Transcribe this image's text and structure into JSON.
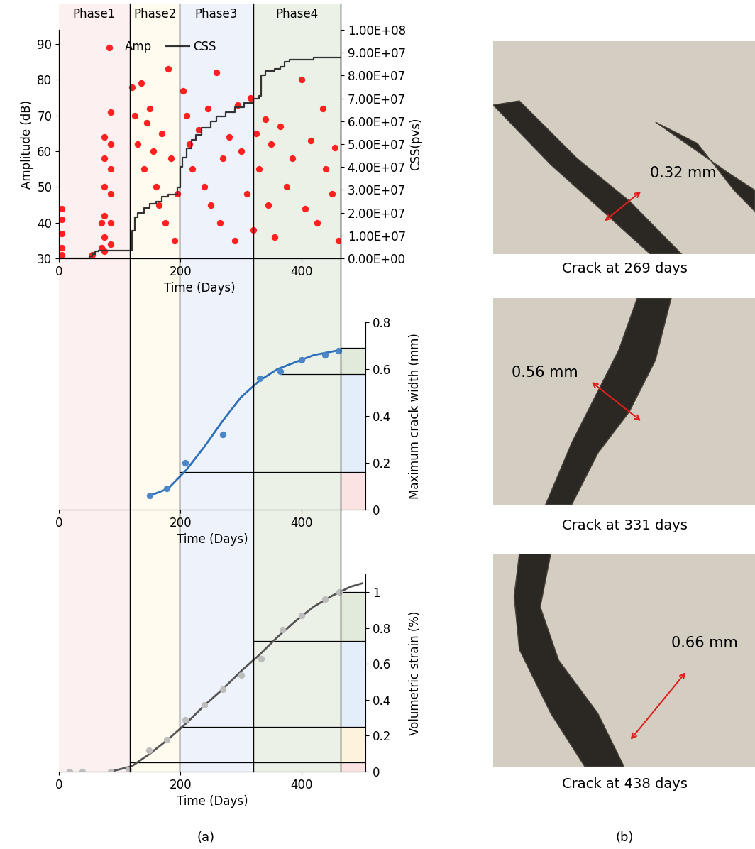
{
  "phases": [
    {
      "name": "Phase1",
      "from": 0,
      "to": 117,
      "color": "#fdf0f0"
    },
    {
      "name": "Phase2",
      "from": 117,
      "to": 199,
      "color": "#fffbee"
    },
    {
      "name": "Phase3",
      "from": 199,
      "to": 320,
      "color": "#eef3fb"
    },
    {
      "name": "Phase4",
      "from": 320,
      "to": 464,
      "color": "#ebf1e6"
    }
  ],
  "chart_data": [
    {
      "type": "scatter",
      "xlabel": "Time (Days)",
      "ylabel": "Amplitude (dB)",
      "y2label": "CSS(pvs)",
      "xlim": [
        0,
        464
      ],
      "xticks": [
        0,
        200,
        400
      ],
      "ylim": [
        30,
        94
      ],
      "yticks": [
        30,
        40,
        50,
        60,
        70,
        80,
        90
      ],
      "y2lim": [
        0,
        100000000
      ],
      "y2ticks": [
        {
          "value": 0,
          "label": "0.00E+00"
        },
        {
          "value": 10000000,
          "label": "1.00E+07"
        },
        {
          "value": 20000000,
          "label": "2.00E+07"
        },
        {
          "value": 30000000,
          "label": "3.00E+07"
        },
        {
          "value": 40000000,
          "label": "4.00E+07"
        },
        {
          "value": 50000000,
          "label": "5.00E+07"
        },
        {
          "value": 60000000,
          "label": "6.00E+07"
        },
        {
          "value": 70000000,
          "label": "7.00E+07"
        },
        {
          "value": 80000000,
          "label": "8.00E+07"
        },
        {
          "value": 90000000,
          "label": "9.00E+07"
        },
        {
          "value": 100000000,
          "label": "1.00E+08"
        }
      ],
      "legend": "upper left",
      "series": [
        {
          "name": "Amp",
          "type": "scatter",
          "color": "#ff2020",
          "marker": "o",
          "x": [
            5,
            5,
            5,
            5,
            5,
            55,
            70,
            70,
            75,
            75,
            75,
            75,
            75,
            75,
            85,
            85,
            85,
            85,
            85,
            85,
            120,
            125,
            130,
            135,
            140,
            145,
            150,
            155,
            160,
            165,
            170,
            175,
            180,
            185,
            190,
            195,
            205,
            210,
            215,
            220,
            230,
            240,
            245,
            250,
            260,
            265,
            270,
            280,
            290,
            295,
            300,
            310,
            315,
            320,
            325,
            330,
            340,
            345,
            350,
            355,
            365,
            375,
            385,
            400,
            405,
            415,
            425,
            435,
            440,
            450,
            455,
            460
          ],
          "values": [
            44,
            41,
            37,
            33,
            31,
            31,
            33,
            40,
            64,
            58,
            50,
            42,
            36,
            32,
            71,
            62,
            55,
            48,
            40,
            34,
            78,
            70,
            62,
            79,
            55,
            68,
            72,
            60,
            50,
            45,
            65,
            40,
            83,
            58,
            35,
            48,
            77,
            70,
            62,
            55,
            66,
            50,
            72,
            45,
            82,
            40,
            58,
            64,
            35,
            73,
            60,
            48,
            75,
            38,
            65,
            55,
            69,
            45,
            62,
            36,
            67,
            50,
            58,
            80,
            44,
            63,
            40,
            72,
            55,
            48,
            61,
            35
          ]
        },
        {
          "name": "CSS",
          "type": "line",
          "color": "#333333",
          "line_style": "steps",
          "axis": "y2",
          "x": [
            0,
            45,
            50,
            55,
            60,
            65,
            117,
            120,
            125,
            130,
            140,
            150,
            160,
            170,
            180,
            195,
            200,
            203,
            210,
            218,
            225,
            235,
            250,
            260,
            275,
            290,
            305,
            320,
            330,
            333,
            340,
            355,
            365,
            372,
            380,
            420,
            464
          ],
          "values": [
            0,
            0,
            1000000,
            2000000,
            3000000,
            3500000,
            3500000,
            12000000,
            18000000,
            20000000,
            22000000,
            24000000,
            25000000,
            27000000,
            28000000,
            31000000,
            40000000,
            44000000,
            48000000,
            52000000,
            54000000,
            57000000,
            60000000,
            62000000,
            64000000,
            66000000,
            68000000,
            70000000,
            71000000,
            80000000,
            82000000,
            83000000,
            84000000,
            86000000,
            87000000,
            88000000,
            88000000
          ]
        }
      ]
    },
    {
      "type": "scatter",
      "xlabel": "Time (Days)",
      "ylabel": "Maximum crack width (mm)",
      "xlim": [
        0,
        505
      ],
      "xticks": [
        0,
        200,
        400
      ],
      "ylim": [
        0,
        0.8
      ],
      "yticks": [
        0,
        0.2,
        0.4,
        0.6,
        0.8
      ],
      "phase_levels": [
        {
          "y": 0.16,
          "from": 199
        },
        {
          "y": 0.58,
          "from": 365
        },
        {
          "y": 0.69,
          "from": 464
        }
      ],
      "bands": [
        {
          "from": 0,
          "to": 0.16,
          "color": "#fbe3e3"
        },
        {
          "from": 0.16,
          "to": 0.58,
          "color": "#e4edfa"
        },
        {
          "from": 0.58,
          "to": 0.69,
          "color": "#e2ebdb"
        }
      ],
      "series": [
        {
          "type": "scatter",
          "color": "#4a86c8",
          "marker": "o",
          "x": [
            150,
            178,
            208,
            270,
            331,
            365,
            400,
            438,
            460
          ],
          "values": [
            0.06,
            0.09,
            0.2,
            0.32,
            0.56,
            0.59,
            0.64,
            0.66,
            0.68
          ]
        },
        {
          "type": "line",
          "color": "#2e6fba",
          "line_style": "solid",
          "x": [
            150,
            180,
            210,
            240,
            270,
            300,
            330,
            360,
            390,
            420,
            460
          ],
          "values": [
            0.06,
            0.09,
            0.17,
            0.27,
            0.38,
            0.48,
            0.55,
            0.6,
            0.63,
            0.66,
            0.68
          ]
        }
      ]
    },
    {
      "type": "scatter",
      "xlabel": "Time (Days)",
      "ylabel": "Volumetric strain (%)",
      "xlim": [
        0,
        505
      ],
      "xticks": [
        0,
        200,
        400
      ],
      "ylim": [
        0,
        1.1
      ],
      "yticks": [
        0,
        0.2,
        0.4,
        0.6,
        0.8,
        1
      ],
      "phase_levels": [
        {
          "y": 0.05,
          "from": 117
        },
        {
          "y": 0.25,
          "from": 199
        },
        {
          "y": 0.73,
          "from": 320
        },
        {
          "y": 1.0,
          "from": 464
        }
      ],
      "bands": [
        {
          "from": 0,
          "to": 0.05,
          "color": "#fbe3e3"
        },
        {
          "from": 0.05,
          "to": 0.25,
          "color": "#fdf3dc"
        },
        {
          "from": 0.25,
          "to": 0.73,
          "color": "#e4edfa"
        },
        {
          "from": 0.73,
          "to": 1.0,
          "color": "#e2ebdb"
        }
      ],
      "series": [
        {
          "type": "scatter",
          "color": "#bdbdbd",
          "marker": "o",
          "x": [
            18,
            38,
            85,
            115,
            148,
            178,
            208,
            240,
            270,
            300,
            333,
            368,
            400,
            438,
            462
          ],
          "values": [
            0,
            0,
            0,
            0.01,
            0.12,
            0.18,
            0.29,
            0.37,
            0.46,
            0.54,
            0.63,
            0.79,
            0.87,
            0.96,
            1.0
          ]
        },
        {
          "type": "line",
          "color": "#555555",
          "line_style": "solid",
          "x": [
            85,
            120,
            150,
            180,
            210,
            240,
            270,
            300,
            330,
            360,
            390,
            420,
            450,
            480,
            500
          ],
          "values": [
            0,
            0.03,
            0.1,
            0.18,
            0.27,
            0.37,
            0.46,
            0.56,
            0.65,
            0.75,
            0.84,
            0.92,
            0.98,
            1.03,
            1.05
          ]
        }
      ]
    }
  ],
  "photos": [
    {
      "caption": "Crack at 269 days",
      "width_label": "0.32 mm"
    },
    {
      "caption": "Crack at 331 days",
      "width_label": "0.56 mm"
    },
    {
      "caption": "Crack at 438 days",
      "width_label": "0.66 mm"
    }
  ],
  "panel_labels": [
    "(a)",
    "(b)"
  ]
}
